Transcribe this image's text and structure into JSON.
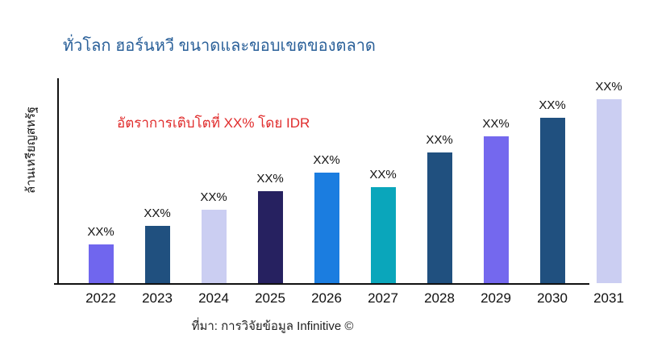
{
  "header": {
    "title": "ทั่วโลก ฮอร์นหวี ขนาดและขอบเขตของตลาด",
    "title_color": "#2a6099"
  },
  "annotation": {
    "text": "อัตราการเติบโตที่ XX% โดย IDR",
    "color": "#e02b2b"
  },
  "footer": {
    "source": "ที่มา: การวิจัยข้อมูล Infinitive ©"
  },
  "chart_data": {
    "type": "bar",
    "title": "ทั่วโลก ฮอร์นหวี ขนาดและขอบเขตของตลาด",
    "xlabel": "",
    "ylabel": "ล้านเหรียญสหรัฐ",
    "categories": [
      "2022",
      "2023",
      "2024",
      "2025",
      "2026",
      "2027",
      "2028",
      "2029",
      "2030",
      "2031"
    ],
    "values": [
      21,
      31,
      40,
      50,
      60,
      52,
      71,
      80,
      90,
      100
    ],
    "value_note": "y-axis unlabeled; values estimated as percent of tallest bar (2031 = 100)",
    "bar_labels": [
      "XX%",
      "XX%",
      "XX%",
      "XX%",
      "XX%",
      "XX%",
      "XX%",
      "XX%",
      "XX%",
      "XX%"
    ],
    "bar_colors": [
      "#7066ee",
      "#20507f",
      "#cbcef2",
      "#262160",
      "#1b7de0",
      "#0aa6bb",
      "#20507f",
      "#7468ee",
      "#20507f",
      "#cbcef2"
    ],
    "ylim": [
      0,
      111
    ],
    "grid": false,
    "legend": false,
    "axis_color": "#111111"
  }
}
